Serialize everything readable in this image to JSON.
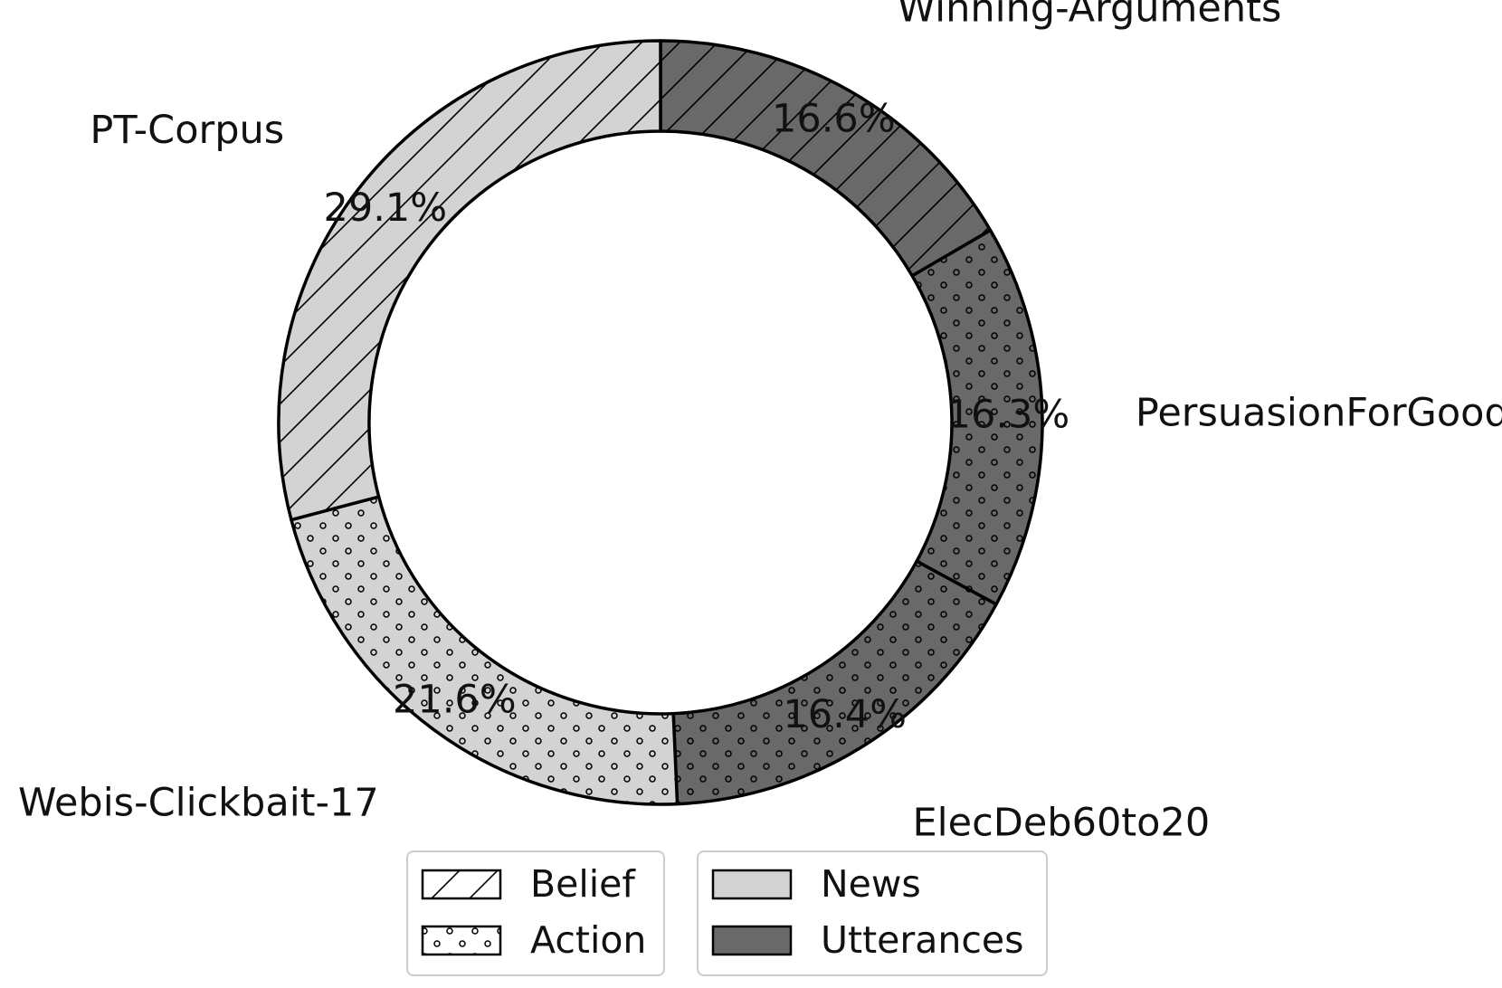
{
  "chart_data": {
    "type": "pie",
    "subtype": "donut",
    "title": "",
    "slices": [
      {
        "label": "Winning-Arguments",
        "value": 16.6,
        "pct_label": "16.6%",
        "group": "Utterances",
        "pattern": "Belief"
      },
      {
        "label": "PersuasionForGood",
        "value": 16.3,
        "pct_label": "16.3%",
        "group": "Utterances",
        "pattern": "Action"
      },
      {
        "label": "ElecDeb60to20",
        "value": 16.4,
        "pct_label": "16.4%",
        "group": "Utterances",
        "pattern": "Action"
      },
      {
        "label": "Webis-Clickbait-17",
        "value": 21.6,
        "pct_label": "21.6%",
        "group": "News",
        "pattern": "Action"
      },
      {
        "label": "PT-Corpus",
        "value": 29.1,
        "pct_label": "29.1%",
        "group": "News",
        "pattern": "Belief"
      }
    ],
    "legends": [
      {
        "name": "pattern-legend",
        "entries": [
          {
            "label": "Belief",
            "pattern": "hatch"
          },
          {
            "label": "Action",
            "pattern": "dots"
          }
        ]
      },
      {
        "name": "color-legend",
        "entries": [
          {
            "label": "News",
            "color": "#d3d3d3"
          },
          {
            "label": "Utterances",
            "color": "#696969"
          }
        ]
      }
    ],
    "colors": {
      "News": "#d3d3d3",
      "Utterances": "#696969",
      "edge": "#000000"
    },
    "legend_placement": "bottom-center",
    "start_angle": "top",
    "direction": "clockwise"
  }
}
